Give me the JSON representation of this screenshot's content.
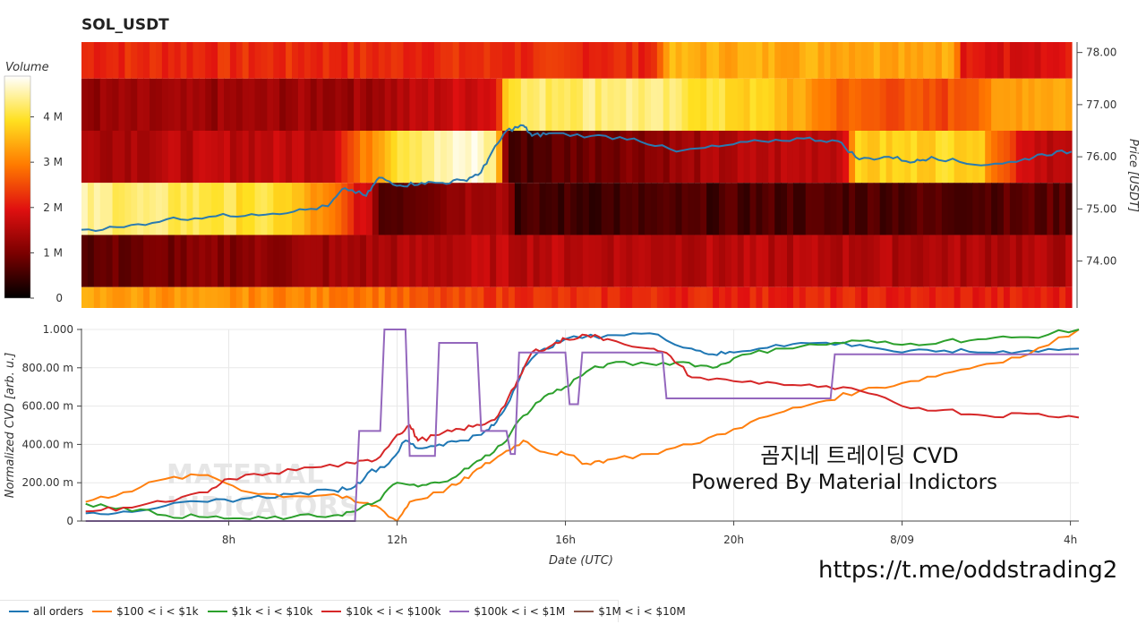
{
  "title": "SOL_USDT",
  "chart_data": [
    {
      "type": "heatmap",
      "title": "SOL_USDT",
      "y_label": "Price [USDT]",
      "y_ticks": [
        "78.00",
        "77.00",
        "76.00",
        "75.00",
        "74.00"
      ],
      "y_range": [
        73.1,
        78.2
      ],
      "colorbar_title": "Volume",
      "colorbar_ticks": [
        "0",
        "1 M",
        "2 M",
        "3 M",
        "4 M"
      ],
      "colorbar_range": [
        0,
        4900000
      ],
      "price_bands": [
        78.0,
        77.0,
        76.0,
        75.0,
        74.0,
        73.0
      ],
      "band_intensity_profiles": [
        [
          [
            0.0,
            0.45
          ],
          [
            0.58,
            0.45
          ],
          [
            0.59,
            0.7
          ],
          [
            0.88,
            0.7
          ],
          [
            0.89,
            0.4
          ],
          [
            1.0,
            0.4
          ]
        ],
        [
          [
            0.0,
            0.25
          ],
          [
            0.28,
            0.27
          ],
          [
            0.42,
            0.4
          ],
          [
            0.43,
            0.85
          ],
          [
            0.55,
            0.9
          ],
          [
            0.7,
            0.75
          ],
          [
            0.77,
            0.55
          ],
          [
            0.87,
            0.5
          ],
          [
            0.95,
            0.7
          ],
          [
            1.0,
            0.7
          ]
        ],
        [
          [
            0.0,
            0.3
          ],
          [
            0.25,
            0.35
          ],
          [
            0.3,
            0.7
          ],
          [
            0.32,
            0.85
          ],
          [
            0.4,
            0.97
          ],
          [
            0.42,
            0.85
          ],
          [
            0.43,
            0.1
          ],
          [
            0.5,
            0.18
          ],
          [
            0.65,
            0.3
          ],
          [
            0.77,
            0.35
          ],
          [
            0.78,
            0.75
          ],
          [
            0.9,
            0.8
          ],
          [
            0.95,
            0.4
          ],
          [
            1.0,
            0.3
          ]
        ],
        [
          [
            0.0,
            0.9
          ],
          [
            0.2,
            0.8
          ],
          [
            0.26,
            0.55
          ],
          [
            0.3,
            0.25
          ],
          [
            0.3,
            0.12
          ],
          [
            0.4,
            0.3
          ],
          [
            0.43,
            0.3
          ],
          [
            0.44,
            0.1
          ],
          [
            1.0,
            0.15
          ]
        ],
        [
          [
            0.0,
            0.15
          ],
          [
            0.2,
            0.25
          ],
          [
            0.4,
            0.33
          ],
          [
            1.0,
            0.3
          ]
        ],
        [
          [
            0.0,
            0.68
          ],
          [
            0.3,
            0.6
          ],
          [
            0.35,
            0.5
          ],
          [
            0.5,
            0.45
          ],
          [
            1.0,
            0.42
          ]
        ]
      ],
      "price_series": {
        "name": "price",
        "t_start_h": 5.0,
        "t_end_h": 28.3,
        "points": [
          [
            5.0,
            74.6
          ],
          [
            6.0,
            74.65
          ],
          [
            7.0,
            74.8
          ],
          [
            8.0,
            74.85
          ],
          [
            9.0,
            74.9
          ],
          [
            10.0,
            74.95
          ],
          [
            10.8,
            75.05
          ],
          [
            11.2,
            75.4
          ],
          [
            11.7,
            75.25
          ],
          [
            12.0,
            75.6
          ],
          [
            12.5,
            75.45
          ],
          [
            13.0,
            75.5
          ],
          [
            13.5,
            75.5
          ],
          [
            14.0,
            75.55
          ],
          [
            14.4,
            75.7
          ],
          [
            14.6,
            76.0
          ],
          [
            15.0,
            76.5
          ],
          [
            15.4,
            76.6
          ],
          [
            15.6,
            76.4
          ],
          [
            16.0,
            76.45
          ],
          [
            17.0,
            76.4
          ],
          [
            18.0,
            76.35
          ],
          [
            19.0,
            76.1
          ],
          [
            20.0,
            76.2
          ],
          [
            21.0,
            76.3
          ],
          [
            22.0,
            76.35
          ],
          [
            22.8,
            76.3
          ],
          [
            23.3,
            75.95
          ],
          [
            24.0,
            76.0
          ],
          [
            24.6,
            75.9
          ],
          [
            25.0,
            76.0
          ],
          [
            26.0,
            75.85
          ],
          [
            27.0,
            75.9
          ],
          [
            27.6,
            76.05
          ],
          [
            28.3,
            76.1
          ]
        ]
      }
    },
    {
      "type": "line",
      "x_label": "Date (UTC)",
      "y_label": "Normalized CVD [arb. u.]",
      "x_ticks": [
        {
          "label": "8h",
          "t": 8
        },
        {
          "label": "12h",
          "t": 12
        },
        {
          "label": "16h",
          "t": 16
        },
        {
          "label": "20h",
          "t": 20
        },
        {
          "label": "8/09",
          "t": 24
        },
        {
          "label": "4h",
          "t": 28
        }
      ],
      "x_range": [
        4.5,
        28.2
      ],
      "y_ticks": [
        {
          "label": "0",
          "v": 0
        },
        {
          "label": "200.00 m",
          "v": 0.2
        },
        {
          "label": "400.00 m",
          "v": 0.4
        },
        {
          "label": "600.00 m",
          "v": 0.6
        },
        {
          "label": "800.00 m",
          "v": 0.8
        },
        {
          "label": "1.000",
          "v": 1.0
        }
      ],
      "y_range": [
        0,
        1.0
      ],
      "series": [
        {
          "name": "all orders",
          "color": "#1f77b4",
          "points": [
            [
              4.6,
              0.04
            ],
            [
              5.5,
              0.05
            ],
            [
              6.5,
              0.08
            ],
            [
              7.5,
              0.1
            ],
            [
              8.5,
              0.12
            ],
            [
              9.5,
              0.14
            ],
            [
              10.5,
              0.16
            ],
            [
              11.0,
              0.18
            ],
            [
              11.3,
              0.25
            ],
            [
              11.8,
              0.3
            ],
            [
              12.2,
              0.42
            ],
            [
              12.5,
              0.38
            ],
            [
              13.0,
              0.4
            ],
            [
              13.5,
              0.42
            ],
            [
              14.0,
              0.45
            ],
            [
              14.3,
              0.5
            ],
            [
              14.6,
              0.6
            ],
            [
              15.0,
              0.8
            ],
            [
              15.5,
              0.9
            ],
            [
              16.0,
              0.95
            ],
            [
              17.0,
              0.97
            ],
            [
              18.0,
              0.98
            ],
            [
              19.0,
              0.9
            ],
            [
              19.5,
              0.87
            ],
            [
              20.0,
              0.88
            ],
            [
              21.0,
              0.92
            ],
            [
              22.0,
              0.93
            ],
            [
              23.0,
              0.92
            ],
            [
              24.0,
              0.88
            ],
            [
              25.0,
              0.89
            ],
            [
              26.0,
              0.88
            ],
            [
              27.0,
              0.89
            ],
            [
              28.2,
              0.9
            ]
          ]
        },
        {
          "name": "$100 < i < $1k",
          "color": "#ff7f0e",
          "points": [
            [
              4.6,
              0.1
            ],
            [
              5.5,
              0.15
            ],
            [
              6.5,
              0.22
            ],
            [
              7.5,
              0.24
            ],
            [
              8.5,
              0.15
            ],
            [
              9.5,
              0.13
            ],
            [
              10.5,
              0.14
            ],
            [
              11.0,
              0.1
            ],
            [
              11.5,
              0.08
            ],
            [
              12.0,
              0.0
            ],
            [
              12.3,
              0.1
            ],
            [
              13.0,
              0.15
            ],
            [
              13.5,
              0.2
            ],
            [
              14.0,
              0.28
            ],
            [
              14.5,
              0.35
            ],
            [
              15.0,
              0.42
            ],
            [
              15.5,
              0.36
            ],
            [
              16.0,
              0.35
            ],
            [
              16.5,
              0.3
            ],
            [
              17.0,
              0.32
            ],
            [
              18.0,
              0.35
            ],
            [
              19.0,
              0.4
            ],
            [
              20.0,
              0.48
            ],
            [
              21.0,
              0.56
            ],
            [
              22.0,
              0.62
            ],
            [
              23.0,
              0.68
            ],
            [
              24.0,
              0.72
            ],
            [
              25.0,
              0.77
            ],
            [
              26.0,
              0.82
            ],
            [
              27.0,
              0.87
            ],
            [
              28.2,
              1.0
            ]
          ]
        },
        {
          "name": "$1k < i < $10k",
          "color": "#2ca02c",
          "points": [
            [
              4.6,
              0.09
            ],
            [
              5.5,
              0.07
            ],
            [
              6.5,
              0.03
            ],
            [
              7.5,
              0.02
            ],
            [
              8.5,
              0.01
            ],
            [
              9.5,
              0.02
            ],
            [
              10.5,
              0.03
            ],
            [
              11.0,
              0.05
            ],
            [
              11.5,
              0.1
            ],
            [
              12.0,
              0.2
            ],
            [
              12.5,
              0.18
            ],
            [
              13.0,
              0.2
            ],
            [
              13.5,
              0.25
            ],
            [
              14.0,
              0.32
            ],
            [
              14.5,
              0.4
            ],
            [
              15.0,
              0.55
            ],
            [
              15.5,
              0.65
            ],
            [
              16.0,
              0.7
            ],
            [
              16.5,
              0.78
            ],
            [
              17.0,
              0.82
            ],
            [
              18.0,
              0.82
            ],
            [
              18.8,
              0.83
            ],
            [
              19.5,
              0.8
            ],
            [
              20.0,
              0.85
            ],
            [
              21.0,
              0.9
            ],
            [
              22.0,
              0.92
            ],
            [
              23.0,
              0.94
            ],
            [
              24.0,
              0.92
            ],
            [
              25.0,
              0.94
            ],
            [
              26.0,
              0.95
            ],
            [
              27.0,
              0.96
            ],
            [
              28.2,
              1.0
            ]
          ]
        },
        {
          "name": "$10k < i < $100k",
          "color": "#d62728",
          "points": [
            [
              4.6,
              0.05
            ],
            [
              5.5,
              0.07
            ],
            [
              6.5,
              0.1
            ],
            [
              7.5,
              0.15
            ],
            [
              8.0,
              0.22
            ],
            [
              9.0,
              0.25
            ],
            [
              10.0,
              0.28
            ],
            [
              11.0,
              0.3
            ],
            [
              11.5,
              0.32
            ],
            [
              12.0,
              0.45
            ],
            [
              12.3,
              0.5
            ],
            [
              12.5,
              0.42
            ],
            [
              13.0,
              0.45
            ],
            [
              13.5,
              0.48
            ],
            [
              14.0,
              0.5
            ],
            [
              14.4,
              0.55
            ],
            [
              14.8,
              0.7
            ],
            [
              15.2,
              0.88
            ],
            [
              15.7,
              0.92
            ],
            [
              16.0,
              0.95
            ],
            [
              16.5,
              0.97
            ],
            [
              17.0,
              0.95
            ],
            [
              18.0,
              0.9
            ],
            [
              18.5,
              0.86
            ],
            [
              19.0,
              0.75
            ],
            [
              20.0,
              0.73
            ],
            [
              21.0,
              0.72
            ],
            [
              22.0,
              0.7
            ],
            [
              23.0,
              0.68
            ],
            [
              24.0,
              0.6
            ],
            [
              25.0,
              0.58
            ],
            [
              26.0,
              0.55
            ],
            [
              27.0,
              0.56
            ],
            [
              28.2,
              0.54
            ]
          ]
        },
        {
          "name": "$100k < i < $1M",
          "color": "#9467bd",
          "points": [
            [
              4.6,
              0.0
            ],
            [
              11.0,
              0.0
            ],
            [
              11.1,
              0.47
            ],
            [
              11.6,
              0.47
            ],
            [
              11.7,
              1.0
            ],
            [
              12.2,
              1.0
            ],
            [
              12.3,
              0.34
            ],
            [
              12.9,
              0.34
            ],
            [
              13.0,
              0.93
            ],
            [
              13.9,
              0.93
            ],
            [
              14.0,
              0.47
            ],
            [
              14.6,
              0.47
            ],
            [
              14.7,
              0.35
            ],
            [
              14.8,
              0.35
            ],
            [
              14.9,
              0.88
            ],
            [
              15.9,
              0.88
            ],
            [
              16.0,
              0.88
            ],
            [
              16.1,
              0.61
            ],
            [
              16.3,
              0.61
            ],
            [
              16.4,
              0.88
            ],
            [
              18.3,
              0.88
            ],
            [
              18.4,
              0.64
            ],
            [
              22.3,
              0.64
            ],
            [
              22.4,
              0.87
            ],
            [
              28.2,
              0.87
            ]
          ]
        },
        {
          "name": "$1M < i < $10M",
          "color": "#8c564b",
          "points": []
        }
      ],
      "annotation_lines": [
        "곰지네 트레이딩 CVD",
        "Powered By Material Indictors"
      ],
      "watermark_lines": [
        "MATERIAL",
        "INDICATORS"
      ]
    }
  ],
  "footer": {
    "url_text": "https://t.me/oddstrading2"
  }
}
